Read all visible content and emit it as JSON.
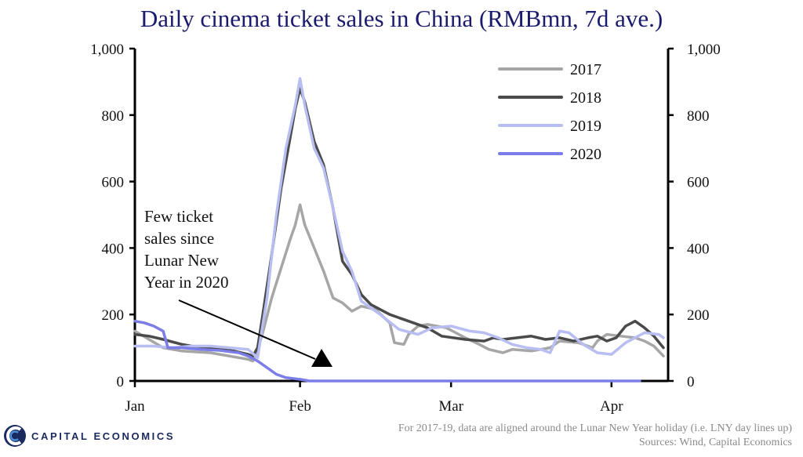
{
  "title": "Daily cinema ticket sales in China (RMBmn, 7d ave.)",
  "chart_data": {
    "type": "line",
    "title": "Daily cinema ticket sales in China (RMBmn, 7d ave.)",
    "xlabel": "",
    "ylabel": "RMBmn, 7d ave.",
    "ylim": [
      0,
      1000
    ],
    "yticks": [
      "0",
      "200",
      "400",
      "600",
      "800",
      "1,000"
    ],
    "yticks_values": [
      0,
      200,
      400,
      600,
      800,
      1000
    ],
    "xlim": [
      0,
      113
    ],
    "x_month_labels": [
      {
        "label": "Jan",
        "day": 0
      },
      {
        "label": "Feb",
        "day": 35
      },
      {
        "label": "Mar",
        "day": 67
      },
      {
        "label": "Apr",
        "day": 101
      }
    ],
    "legend_position": "top-right",
    "series": [
      {
        "name": "2017",
        "color": "#a6a6a6",
        "points": [
          [
            0,
            150
          ],
          [
            3,
            125
          ],
          [
            6,
            100
          ],
          [
            10,
            90
          ],
          [
            16,
            85
          ],
          [
            20,
            75
          ],
          [
            24,
            65
          ],
          [
            25,
            60
          ],
          [
            26,
            95
          ],
          [
            27,
            140
          ],
          [
            29,
            250
          ],
          [
            31,
            340
          ],
          [
            33,
            430
          ],
          [
            34,
            470
          ],
          [
            35,
            530
          ],
          [
            36,
            470
          ],
          [
            38,
            400
          ],
          [
            40,
            330
          ],
          [
            42,
            250
          ],
          [
            44,
            235
          ],
          [
            46,
            210
          ],
          [
            48,
            225
          ],
          [
            51,
            215
          ],
          [
            54,
            175
          ],
          [
            55,
            115
          ],
          [
            57,
            110
          ],
          [
            58,
            140
          ],
          [
            60,
            165
          ],
          [
            62,
            170
          ],
          [
            64,
            165
          ],
          [
            66,
            160
          ],
          [
            68,
            145
          ],
          [
            70,
            130
          ],
          [
            73,
            110
          ],
          [
            75,
            95
          ],
          [
            78,
            85
          ],
          [
            80,
            95
          ],
          [
            84,
            90
          ],
          [
            88,
            100
          ],
          [
            90,
            120
          ],
          [
            94,
            115
          ],
          [
            97,
            100
          ],
          [
            98,
            120
          ],
          [
            100,
            140
          ],
          [
            103,
            135
          ],
          [
            106,
            130
          ],
          [
            108,
            120
          ],
          [
            110,
            105
          ],
          [
            112,
            75
          ]
        ]
      },
      {
        "name": "2018",
        "color": "#4a4a4a",
        "points": [
          [
            0,
            140
          ],
          [
            3,
            135
          ],
          [
            6,
            125
          ],
          [
            10,
            110
          ],
          [
            14,
            100
          ],
          [
            18,
            95
          ],
          [
            21,
            90
          ],
          [
            24,
            80
          ],
          [
            25,
            75
          ],
          [
            26,
            100
          ],
          [
            27,
            190
          ],
          [
            29,
            380
          ],
          [
            31,
            580
          ],
          [
            33,
            740
          ],
          [
            34,
            820
          ],
          [
            35,
            880
          ],
          [
            36,
            840
          ],
          [
            38,
            720
          ],
          [
            40,
            650
          ],
          [
            42,
            520
          ],
          [
            44,
            360
          ],
          [
            46,
            320
          ],
          [
            48,
            260
          ],
          [
            50,
            230
          ],
          [
            54,
            200
          ],
          [
            58,
            180
          ],
          [
            62,
            160
          ],
          [
            65,
            135
          ],
          [
            70,
            125
          ],
          [
            74,
            120
          ],
          [
            76,
            130
          ],
          [
            78,
            125
          ],
          [
            81,
            130
          ],
          [
            84,
            135
          ],
          [
            87,
            125
          ],
          [
            90,
            130
          ],
          [
            93,
            120
          ],
          [
            96,
            130
          ],
          [
            98,
            135
          ],
          [
            100,
            120
          ],
          [
            102,
            130
          ],
          [
            104,
            165
          ],
          [
            106,
            180
          ],
          [
            108,
            160
          ],
          [
            110,
            135
          ],
          [
            112,
            100
          ]
        ]
      },
      {
        "name": "2019",
        "color": "#b8bdf2",
        "points": [
          [
            0,
            105
          ],
          [
            4,
            105
          ],
          [
            8,
            100
          ],
          [
            12,
            105
          ],
          [
            16,
            105
          ],
          [
            20,
            100
          ],
          [
            24,
            95
          ],
          [
            26,
            70
          ],
          [
            28,
            250
          ],
          [
            30,
            500
          ],
          [
            32,
            700
          ],
          [
            34,
            830
          ],
          [
            35,
            910
          ],
          [
            36,
            830
          ],
          [
            38,
            700
          ],
          [
            40,
            640
          ],
          [
            42,
            520
          ],
          [
            44,
            390
          ],
          [
            46,
            330
          ],
          [
            48,
            240
          ],
          [
            52,
            200
          ],
          [
            56,
            155
          ],
          [
            60,
            140
          ],
          [
            63,
            160
          ],
          [
            67,
            165
          ],
          [
            71,
            150
          ],
          [
            74,
            145
          ],
          [
            77,
            130
          ],
          [
            80,
            110
          ],
          [
            83,
            100
          ],
          [
            86,
            95
          ],
          [
            88,
            85
          ],
          [
            90,
            150
          ],
          [
            92,
            145
          ],
          [
            95,
            110
          ],
          [
            98,
            85
          ],
          [
            101,
            80
          ],
          [
            104,
            115
          ],
          [
            108,
            145
          ],
          [
            111,
            140
          ],
          [
            112,
            130
          ]
        ]
      },
      {
        "name": "2020",
        "color": "#7b7de8",
        "points": [
          [
            0,
            180
          ],
          [
            2,
            175
          ],
          [
            4,
            165
          ],
          [
            6,
            150
          ],
          [
            7,
            100
          ],
          [
            10,
            100
          ],
          [
            14,
            95
          ],
          [
            18,
            92
          ],
          [
            22,
            85
          ],
          [
            24,
            75
          ],
          [
            26,
            60
          ],
          [
            28,
            40
          ],
          [
            30,
            20
          ],
          [
            32,
            10
          ],
          [
            35,
            5
          ],
          [
            37,
            0
          ],
          [
            42,
            0
          ],
          [
            60,
            0
          ],
          [
            80,
            0
          ],
          [
            100,
            0
          ],
          [
            107,
            0
          ]
        ]
      }
    ],
    "annotation": {
      "lines": [
        "Few ticket",
        "sales since",
        "Lunar  New",
        "Year in 2020"
      ]
    }
  },
  "footer": {
    "logo_text": "CAPITAL ECONOMICS",
    "note": "For 2017-19, data are aligned around the Lunar New Year holiday (i.e. LNY day lines up)",
    "sources": "Sources: Wind, Capital Economics"
  }
}
